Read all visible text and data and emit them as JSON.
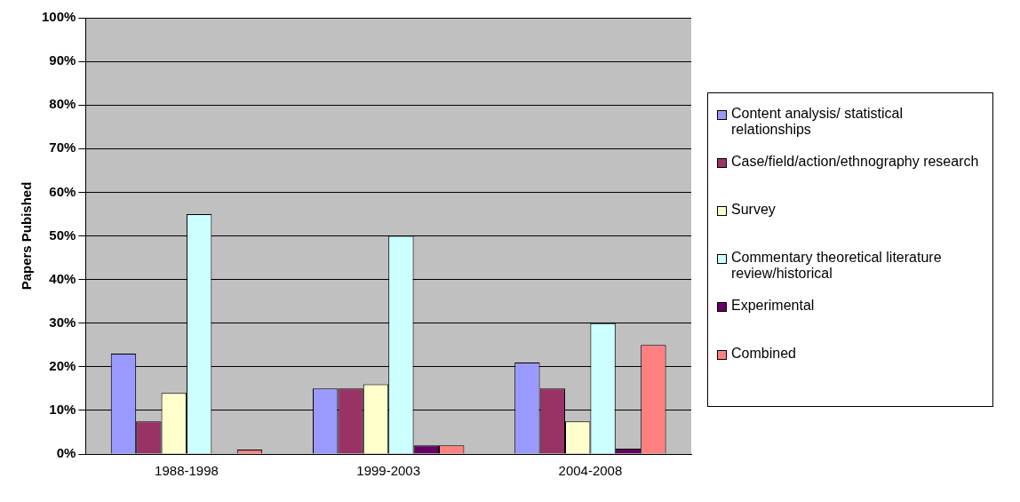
{
  "chart_data": {
    "type": "bar",
    "ylabel": "Papers Pubished",
    "categories": [
      "1988-1998",
      "1999-2003",
      "2004-2008"
    ],
    "series": [
      {
        "name": "Content analysis/ statistical relationships",
        "color": "#9999ff",
        "values": [
          23,
          15,
          21
        ]
      },
      {
        "name": "Case/field/action/ethnography research",
        "color": "#993366",
        "values": [
          7.5,
          15,
          15
        ]
      },
      {
        "name": "Survey",
        "color": "#ffffcc",
        "values": [
          14,
          16,
          7.5
        ]
      },
      {
        "name": "Commentary theoretical literature review/historical",
        "color": "#ccffff",
        "values": [
          55,
          50,
          30
        ]
      },
      {
        "name": "Experimental",
        "color": "#660066",
        "values": [
          0,
          2,
          1.2
        ]
      },
      {
        "name": "Combined",
        "color": "#ff8080",
        "values": [
          1,
          2,
          25
        ]
      }
    ],
    "ylim": [
      0,
      100
    ],
    "yticks": [
      {
        "value": 0,
        "label": "0%"
      },
      {
        "value": 10,
        "label": "10%"
      },
      {
        "value": 20,
        "label": "20%"
      },
      {
        "value": 30,
        "label": "30%"
      },
      {
        "value": 40,
        "label": "40%"
      },
      {
        "value": 50,
        "label": "50%"
      },
      {
        "value": 60,
        "label": "60%"
      },
      {
        "value": 70,
        "label": "70%"
      },
      {
        "value": 80,
        "label": "80%"
      },
      {
        "value": 90,
        "label": "90%"
      },
      {
        "value": 100,
        "label": "100%"
      }
    ],
    "grid": "y",
    "legend": "right"
  }
}
